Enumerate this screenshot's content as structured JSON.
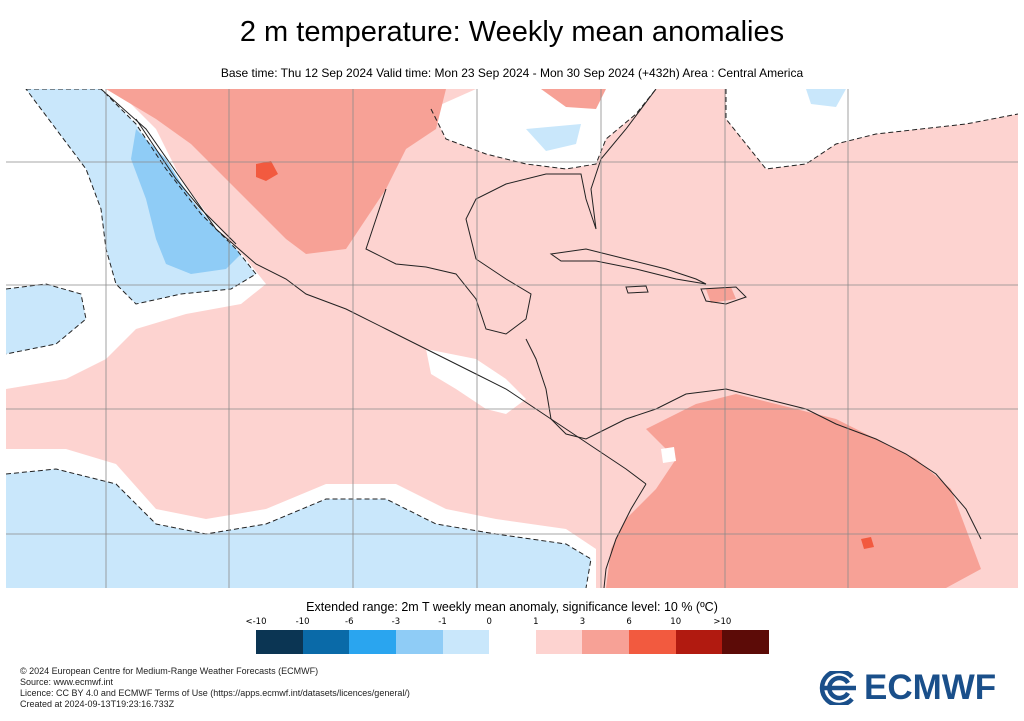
{
  "title": "2 m temperature: Weekly mean anomalies",
  "subtitle": "Base time: Thu 12 Sep 2024 Valid time: Mon 23 Sep 2024 - Mon 30 Sep 2024 (+432h) Area : Central America",
  "legend": {
    "title": "Extended range: 2m T weekly mean anomaly, significance level: 10 % (ºC)",
    "ticks": [
      "<-10",
      "-10",
      "-6",
      "-3",
      "-1",
      "0",
      "1",
      "3",
      "6",
      "10",
      ">10"
    ],
    "colors": [
      "#0b3553",
      "#0a6aa8",
      "#2aa5ef",
      "#8fccf6",
      "#c9e7fb",
      "#ffffff",
      "#fdd3d0",
      "#f7a196",
      "#f25a3f",
      "#b11a10",
      "#5c0b07"
    ]
  },
  "map": {
    "colors": {
      "ocean_warm": "#fdd3d0",
      "land_warm": "#f7a196",
      "hot": "#f25a3f",
      "cool": "#c9e7fb",
      "cold": "#8fccf6",
      "neutral": "#ffffff",
      "coast": "#222222",
      "grid": "#8a8a8a"
    }
  },
  "footer": {
    "lines": [
      "© 2024 European Centre for Medium-Range Weather Forecasts (ECMWF)",
      "Source: www.ecmwf.int",
      "Licence: CC BY 4.0 and ECMWF Terms of Use (https://apps.ecmwf.int/datasets/licences/general/)",
      "Created at 2024-09-13T19:23:16.733Z"
    ]
  },
  "logo": {
    "text": "ECMWF",
    "color": "#1a4f8a"
  }
}
